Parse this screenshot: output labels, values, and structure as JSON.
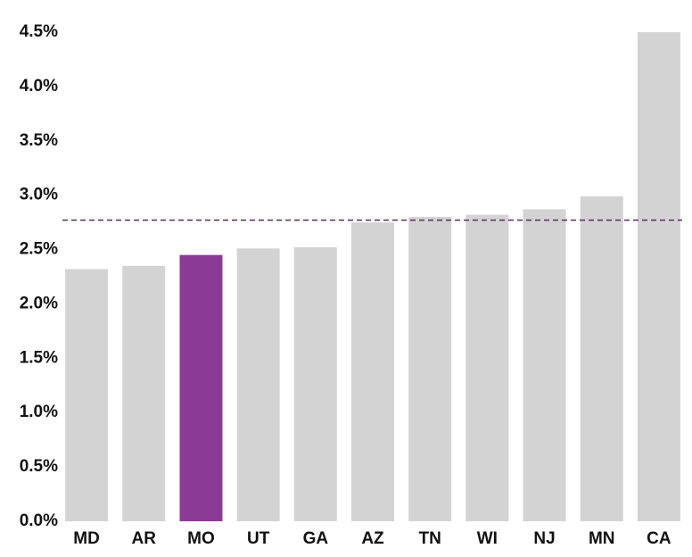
{
  "chart_data": {
    "type": "bar",
    "categories": [
      "MD",
      "AR",
      "MO",
      "UT",
      "GA",
      "AZ",
      "TN",
      "WI",
      "NJ",
      "MN",
      "CA"
    ],
    "values": [
      2.32,
      2.35,
      2.45,
      2.51,
      2.52,
      2.75,
      2.8,
      2.82,
      2.87,
      2.99,
      4.5
    ],
    "colors": [
      "#d3d3d3",
      "#d3d3d3",
      "#8b3a96",
      "#d3d3d3",
      "#d3d3d3",
      "#d3d3d3",
      "#d3d3d3",
      "#d3d3d3",
      "#d3d3d3",
      "#d3d3d3",
      "#d3d3d3"
    ],
    "reference_line": {
      "value": 2.77,
      "color": "#5b2a63"
    },
    "ylim": [
      0,
      4.5
    ],
    "yticks": [
      {
        "value": 0,
        "label": "0.0%"
      },
      {
        "value": 0.5,
        "label": "0.5%"
      },
      {
        "value": 1,
        "label": "1.0%"
      },
      {
        "value": 1.5,
        "label": "1.5%"
      },
      {
        "value": 2,
        "label": "2.0%"
      },
      {
        "value": 2.5,
        "label": "2.5%"
      },
      {
        "value": 3,
        "label": "3.0%"
      },
      {
        "value": 3.5,
        "label": "3.5%"
      },
      {
        "value": 4,
        "label": "4.0%"
      },
      {
        "value": 4.5,
        "label": "4.5%"
      }
    ],
    "grid": false
  }
}
